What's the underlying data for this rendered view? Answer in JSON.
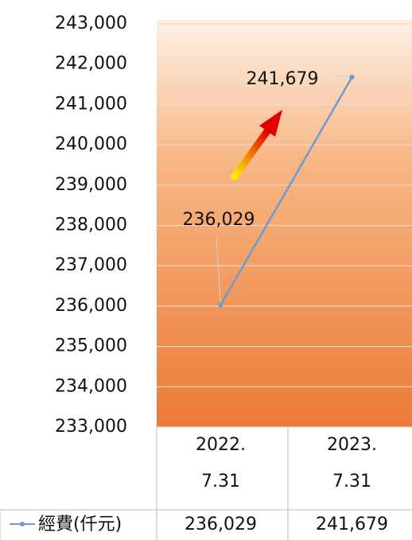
{
  "chart_data": {
    "type": "line",
    "categories": [
      "2022.\n7.31",
      "2023.\n7.31"
    ],
    "series": [
      {
        "name": "經費(仟元)",
        "color": "#6a9bd1",
        "values": [
          236029,
          241679
        ],
        "value_labels": [
          "236,029",
          "241,679"
        ]
      }
    ],
    "ylim": [
      233000,
      243000
    ],
    "yticks": [
      {
        "value": 233000,
        "label": "233,000"
      },
      {
        "value": 234000,
        "label": "234,000"
      },
      {
        "value": 235000,
        "label": "235,000"
      },
      {
        "value": 236000,
        "label": "236,000"
      },
      {
        "value": 237000,
        "label": "237,000"
      },
      {
        "value": 238000,
        "label": "238,000"
      },
      {
        "value": 239000,
        "label": "239,000"
      },
      {
        "value": 240000,
        "label": "240,000"
      },
      {
        "value": 241000,
        "label": "241,000"
      },
      {
        "value": 242000,
        "label": "242,000"
      },
      {
        "value": 243000,
        "label": "243,000"
      }
    ],
    "grid": true
  }
}
